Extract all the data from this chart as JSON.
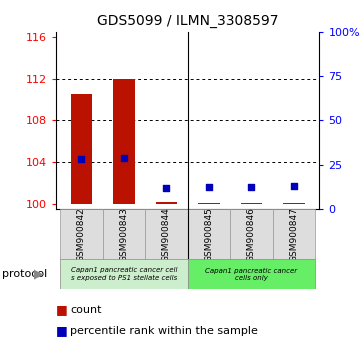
{
  "title": "GDS5099 / ILMN_3308597",
  "samples": [
    "GSM900842",
    "GSM900843",
    "GSM900844",
    "GSM900845",
    "GSM900846",
    "GSM900847"
  ],
  "count_values": [
    110.5,
    112.0,
    100.15,
    100.1,
    100.1,
    100.1
  ],
  "percentile_values": [
    104.3,
    104.4,
    101.5,
    101.6,
    101.6,
    101.65
  ],
  "ylim_left": [
    99.5,
    116.5
  ],
  "ylim_right": [
    0,
    100
  ],
  "yticks_left": [
    100,
    104,
    108,
    112,
    116
  ],
  "yticks_right": [
    0,
    25,
    50,
    75,
    100
  ],
  "ytick_labels_right": [
    "0",
    "25",
    "50",
    "75",
    "100%"
  ],
  "bar_color": "#bb1100",
  "percentile_color": "#0000bb",
  "bg_color": "#ffffff",
  "group1_color": "#cceecc",
  "group2_color": "#66ee66",
  "group1_label": "Capan1 pancreatic cancer cell\ns exposed to PS1 stellate cells",
  "group2_label": "Capan1 pancreatic cancer\ncells only",
  "protocol_label": "protocol",
  "legend_count_label": "count",
  "legend_percentile_label": "percentile rank within the sample",
  "bar_width": 0.5,
  "n_group1": 3,
  "n_group2": 3
}
